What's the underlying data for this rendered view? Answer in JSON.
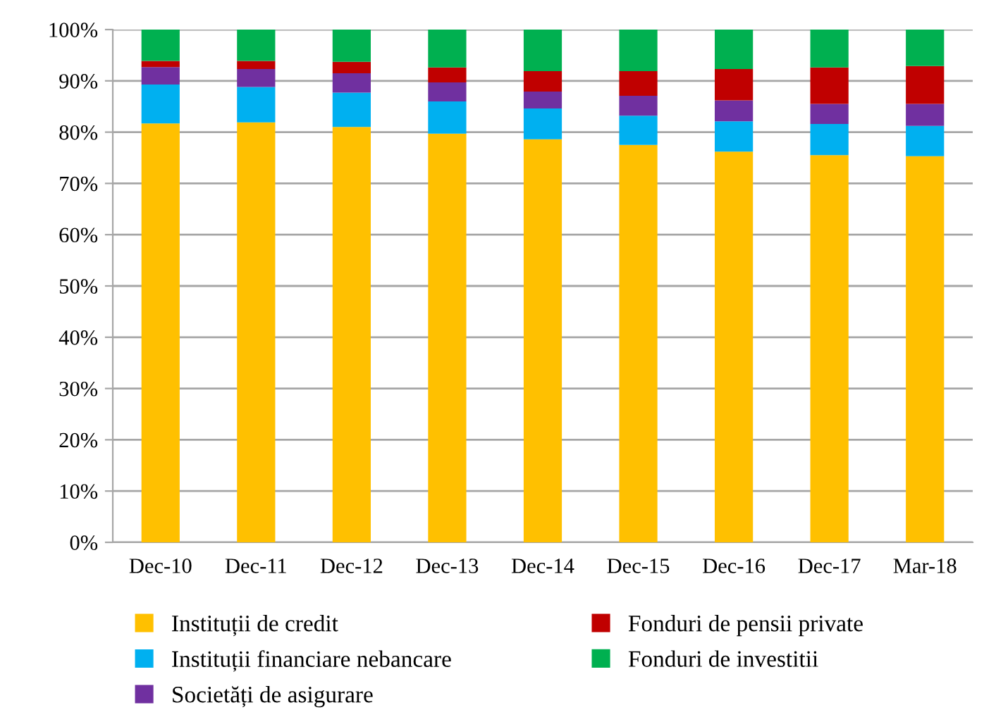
{
  "chart_data": {
    "type": "bar",
    "stacked": true,
    "categories": [
      "Dec-10",
      "Dec-11",
      "Dec-12",
      "Dec-13",
      "Dec-14",
      "Dec-15",
      "Dec-16",
      "Dec-17",
      "Mar-18"
    ],
    "series": [
      {
        "name": "Instituții de credit",
        "color": "#ffc000",
        "values": [
          81.7,
          81.9,
          81.0,
          79.7,
          78.6,
          77.5,
          76.2,
          75.5,
          75.3
        ]
      },
      {
        "name": "Instituții financiare nebancare",
        "color": "#00b0f0",
        "values": [
          7.6,
          6.9,
          6.7,
          6.3,
          6.0,
          5.7,
          5.9,
          6.1,
          5.9
        ]
      },
      {
        "name": "Societăți de asigurare",
        "color": "#7030a0",
        "values": [
          3.4,
          3.5,
          3.8,
          3.7,
          3.3,
          3.9,
          4.1,
          3.9,
          4.3
        ]
      },
      {
        "name": "Fonduri de pensii private",
        "color": "#c00000",
        "values": [
          1.2,
          1.6,
          2.2,
          2.9,
          4.0,
          4.8,
          6.1,
          7.1,
          7.4
        ]
      },
      {
        "name": "Fonduri de investitii",
        "color": "#00b050",
        "values": [
          6.1,
          6.1,
          6.3,
          7.4,
          8.1,
          8.1,
          7.7,
          7.4,
          7.1
        ]
      }
    ],
    "ylim": [
      0,
      100
    ],
    "yticks": [
      {
        "value": 0,
        "label": "0%"
      },
      {
        "value": 10,
        "label": "10%"
      },
      {
        "value": 20,
        "label": "20%"
      },
      {
        "value": 30,
        "label": "30%"
      },
      {
        "value": 40,
        "label": "40%"
      },
      {
        "value": 50,
        "label": "50%"
      },
      {
        "value": 60,
        "label": "60%"
      },
      {
        "value": 70,
        "label": "70%"
      },
      {
        "value": 80,
        "label": "80%"
      },
      {
        "value": 90,
        "label": "90%"
      },
      {
        "value": 100,
        "label": "100%"
      }
    ],
    "grid": "y",
    "legend": "bottom"
  }
}
